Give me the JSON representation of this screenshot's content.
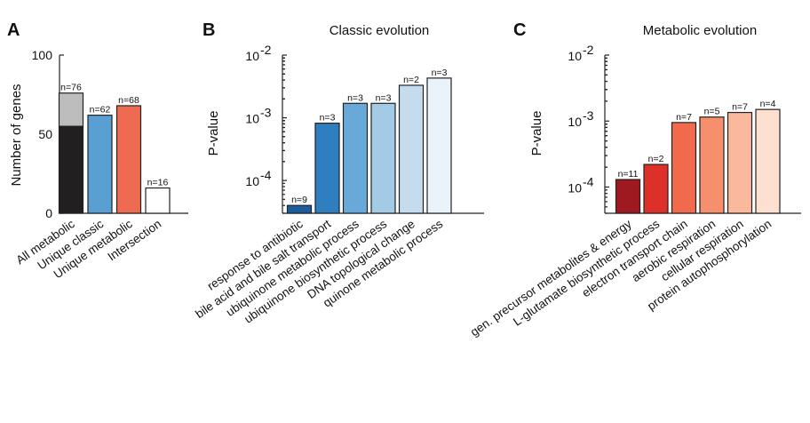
{
  "panels": {
    "A": {
      "letter": "A"
    },
    "B": {
      "letter": "B"
    },
    "C": {
      "letter": "C"
    }
  },
  "chart_data": [
    {
      "type": "bar",
      "panel": "A",
      "title": "",
      "ylabel": "Number of genes",
      "yscale": "linear",
      "ylim": [
        0,
        100
      ],
      "yticks": [
        "0",
        "50",
        "100"
      ],
      "categories": [
        "All metabolic",
        "Unique classic",
        "Unique metabolic",
        "Intersection"
      ],
      "values": [
        76,
        62,
        68,
        16
      ],
      "stacked_lower": [
        55,
        null,
        null,
        null
      ],
      "labels": [
        "n=76",
        "n=62",
        "n=68",
        "n=16"
      ],
      "colors": [
        "#231f20",
        "#5a9fd4",
        "#ee6a50",
        "#ffffff"
      ],
      "upper_segment_color": "#bdbdbd"
    },
    {
      "type": "bar",
      "panel": "B",
      "title": "Classic evolution",
      "ylabel": "P-value",
      "yscale": "log",
      "ylim": [
        3e-05,
        0.01
      ],
      "yticks": [
        {
          "base": "10",
          "exp": "-4"
        },
        {
          "base": "10",
          "exp": "-3"
        },
        {
          "base": "10",
          "exp": "-2"
        }
      ],
      "categories": [
        "response to antibiotic",
        "bile acid and bile salt transport",
        "ubiquinone metabolic process",
        "ubiquinone biosynthetic process",
        "DNA topological change",
        "quinone metabolic process"
      ],
      "values": [
        4e-05,
        0.00082,
        0.0017,
        0.0017,
        0.0033,
        0.0043
      ],
      "labels": [
        "n=9",
        "n=3",
        "n=3",
        "n=3",
        "n=2",
        "n=3"
      ],
      "colors": [
        "#1d5d9e",
        "#2f7fc0",
        "#69a9d9",
        "#a3cbe6",
        "#c5dcef",
        "#eaf2fa"
      ]
    },
    {
      "type": "bar",
      "panel": "C",
      "title": "Metabolic evolution",
      "ylabel": "P-value",
      "yscale": "log",
      "ylim": [
        4e-05,
        0.01
      ],
      "yticks": [
        {
          "base": "10",
          "exp": "-4"
        },
        {
          "base": "10",
          "exp": "-3"
        },
        {
          "base": "10",
          "exp": "-2"
        }
      ],
      "categories": [
        "gen. precursor metabolites & energy",
        "L-glutamate biosynthetic process",
        "electron transport chain",
        "aerobic respiration",
        "cellular respiration",
        "protein autophosphorylation"
      ],
      "values": [
        0.00013,
        0.00022,
        0.00095,
        0.00115,
        0.00135,
        0.0015
      ],
      "labels": [
        "n=11",
        "n=2",
        "n=7",
        "n=5",
        "n=7",
        "n=4"
      ],
      "colors": [
        "#9e1a20",
        "#dd3028",
        "#f26a4c",
        "#f6906c",
        "#fab99c",
        "#fde0d0"
      ]
    }
  ]
}
